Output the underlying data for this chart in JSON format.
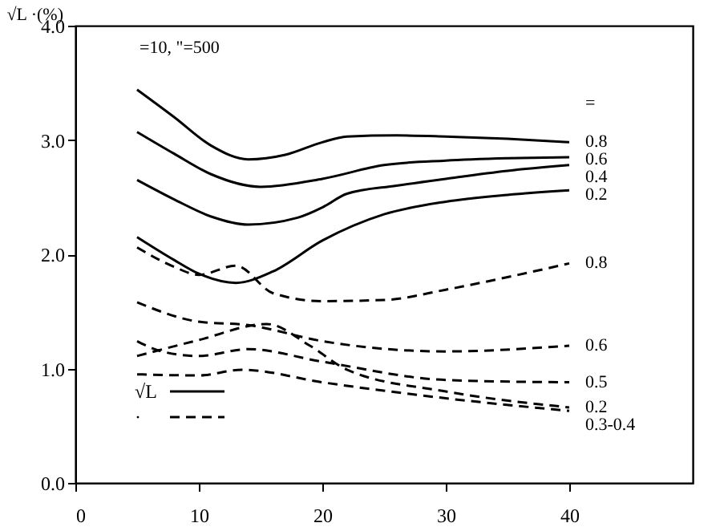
{
  "chart_data": {
    "type": "line",
    "ylabel": "√L ·(%)",
    "annotations": [
      "=10, \"=500",
      "=",
      "√L",
      "·"
    ],
    "xlim": [
      0,
      50
    ],
    "xticks": [
      0,
      10,
      20,
      30,
      40
    ],
    "ylim": [
      0,
      4
    ],
    "yticks": [
      {
        "value": 0,
        "label": "0.0"
      },
      {
        "value": 1,
        "label": "1.0"
      },
      {
        "value": 2,
        "label": "2.0"
      },
      {
        "value": 3,
        "label": "3.0"
      },
      {
        "value": 4,
        "label": "4.0"
      }
    ],
    "grid": false,
    "marker": "none",
    "series": [
      {
        "name": "0.8",
        "color": "#000000",
        "line_style": "solid",
        "x": [
          5,
          8,
          11,
          14,
          17,
          20,
          22,
          26,
          30,
          35,
          40
        ],
        "values": [
          3.44,
          3.2,
          2.95,
          2.83,
          2.87,
          2.98,
          3.03,
          3.04,
          3.03,
          3.01,
          2.98
        ]
      },
      {
        "name": "0.6",
        "color": "#000000",
        "line_style": "solid",
        "x": [
          5,
          8,
          11,
          15,
          20,
          25,
          30,
          35,
          40
        ],
        "values": [
          3.07,
          2.88,
          2.7,
          2.59,
          2.66,
          2.78,
          2.82,
          2.84,
          2.85
        ]
      },
      {
        "name": "0.4",
        "color": "#000000",
        "line_style": "solid",
        "x": [
          5,
          8,
          11,
          14,
          18,
          20,
          22,
          26,
          30,
          35,
          40
        ],
        "values": [
          2.65,
          2.48,
          2.33,
          2.26,
          2.32,
          2.41,
          2.53,
          2.6,
          2.66,
          2.73,
          2.78
        ]
      },
      {
        "name": "0.2",
        "color": "#000000",
        "line_style": "solid",
        "x": [
          5,
          8,
          10,
          13,
          16,
          20,
          25,
          30,
          35,
          40
        ],
        "values": [
          2.15,
          1.95,
          1.83,
          1.75,
          1.85,
          2.12,
          2.35,
          2.46,
          2.52,
          2.56
        ]
      },
      {
        "name": "0.8",
        "color": "#000000",
        "line_style": "dashed",
        "x": [
          5,
          8,
          10,
          13,
          16,
          20,
          25,
          30,
          35,
          40
        ],
        "values": [
          2.06,
          1.89,
          1.82,
          1.9,
          1.66,
          1.59,
          1.6,
          1.69,
          1.8,
          1.92
        ]
      },
      {
        "name": "0.6",
        "color": "#000000",
        "line_style": "dashed",
        "x": [
          5,
          10,
          14,
          20,
          30,
          40
        ],
        "values": [
          1.58,
          1.41,
          1.38,
          1.24,
          1.15,
          1.2
        ]
      },
      {
        "name": "0.5",
        "color": "#000000",
        "line_style": "dashed",
        "x": [
          5,
          7,
          10,
          14,
          20,
          30,
          40
        ],
        "values": [
          1.24,
          1.15,
          1.11,
          1.17,
          1.06,
          0.9,
          0.88
        ]
      },
      {
        "name": "0.2",
        "color": "#000000",
        "line_style": "dashed",
        "x": [
          5,
          10,
          15.5,
          19,
          22,
          30,
          40
        ],
        "values": [
          1.11,
          1.25,
          1.39,
          1.2,
          0.99,
          0.8,
          0.66
        ]
      },
      {
        "name": "0.3-0.4",
        "color": "#000000",
        "line_style": "dashed",
        "x": [
          5,
          10,
          13.5,
          20,
          30,
          40
        ],
        "values": [
          0.95,
          0.94,
          0.99,
          0.88,
          0.74,
          0.63
        ]
      }
    ]
  }
}
